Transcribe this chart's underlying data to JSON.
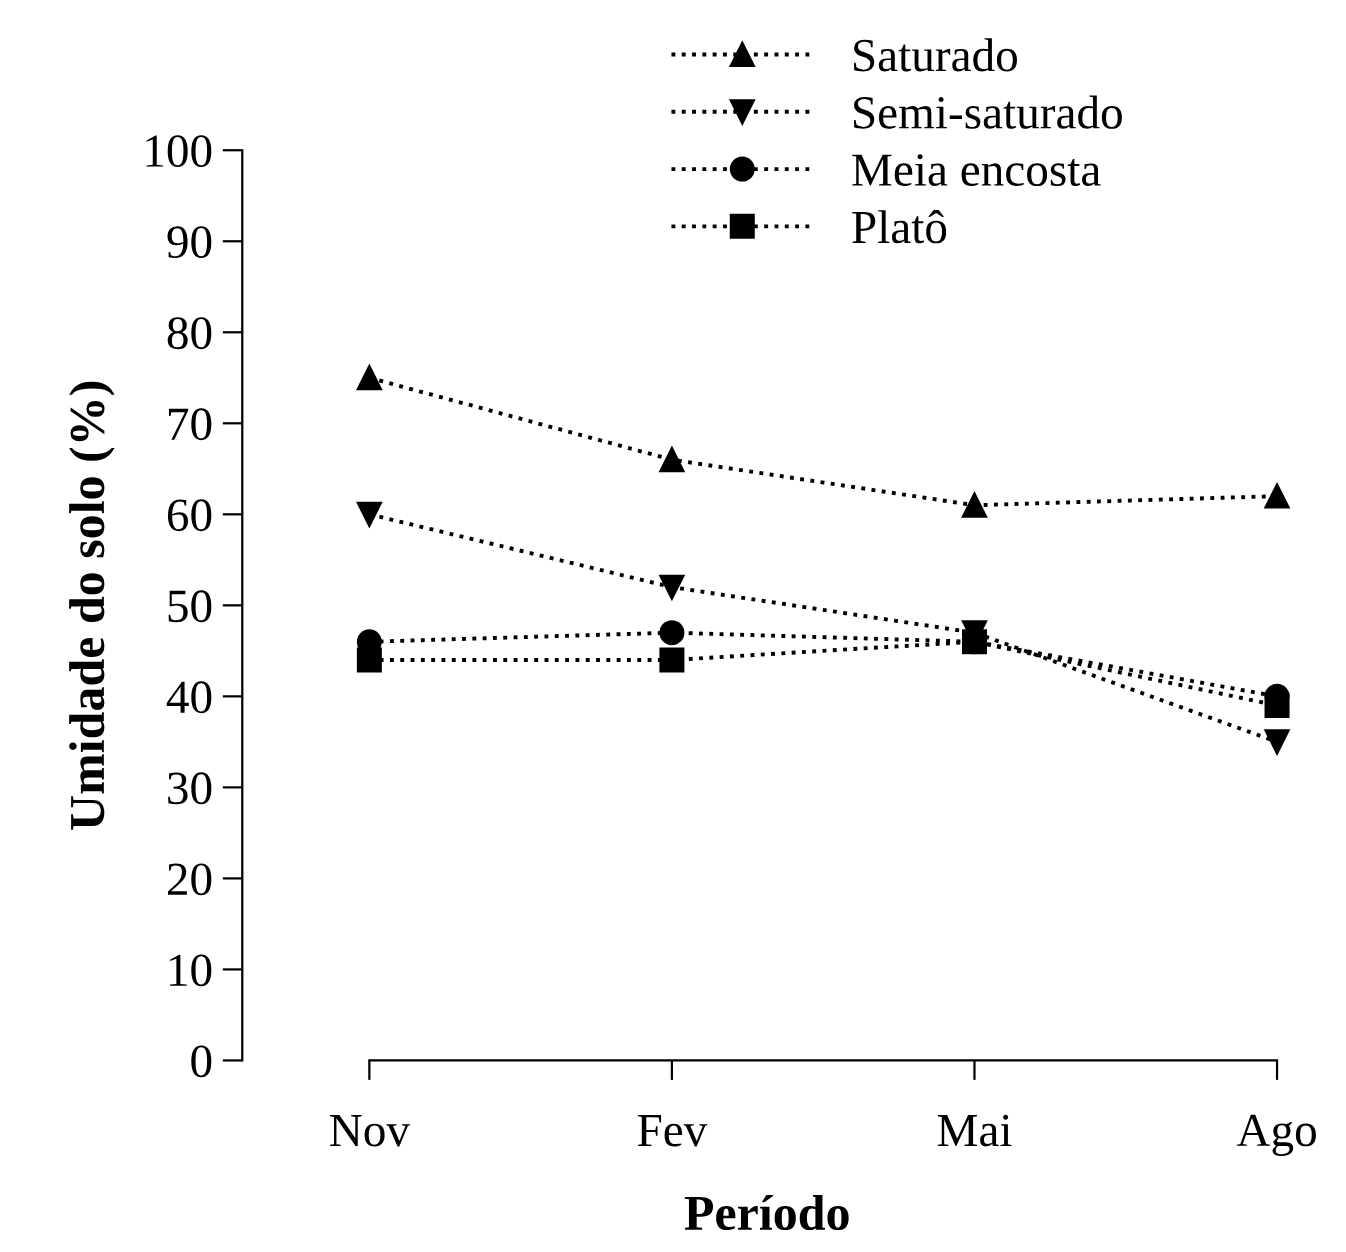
{
  "chart_data": {
    "type": "line",
    "xlabel": "Período",
    "ylabel": "Umidade do solo (%)",
    "categories": [
      "Nov",
      "Fev",
      "Mai",
      "Ago"
    ],
    "ylim": [
      0,
      100
    ],
    "yticks": [
      0,
      10,
      20,
      30,
      40,
      50,
      60,
      70,
      80,
      90,
      100
    ],
    "grid": false,
    "legend": "top right",
    "line_style": "dotted",
    "series": [
      {
        "name": "Saturado",
        "color": "#000000",
        "marker": "triangle",
        "values": [
          75,
          66,
          61,
          62
        ]
      },
      {
        "name": "Semi-saturado",
        "color": "#000000",
        "marker": "triangle_down",
        "values": [
          60,
          52,
          47,
          35
        ]
      },
      {
        "name": "Meia encosta",
        "color": "#000000",
        "marker": "circle",
        "values": [
          46,
          47,
          46,
          40
        ]
      },
      {
        "name": "Platô",
        "color": "#000000",
        "marker": "square",
        "values": [
          44,
          44,
          46,
          39
        ]
      }
    ]
  }
}
